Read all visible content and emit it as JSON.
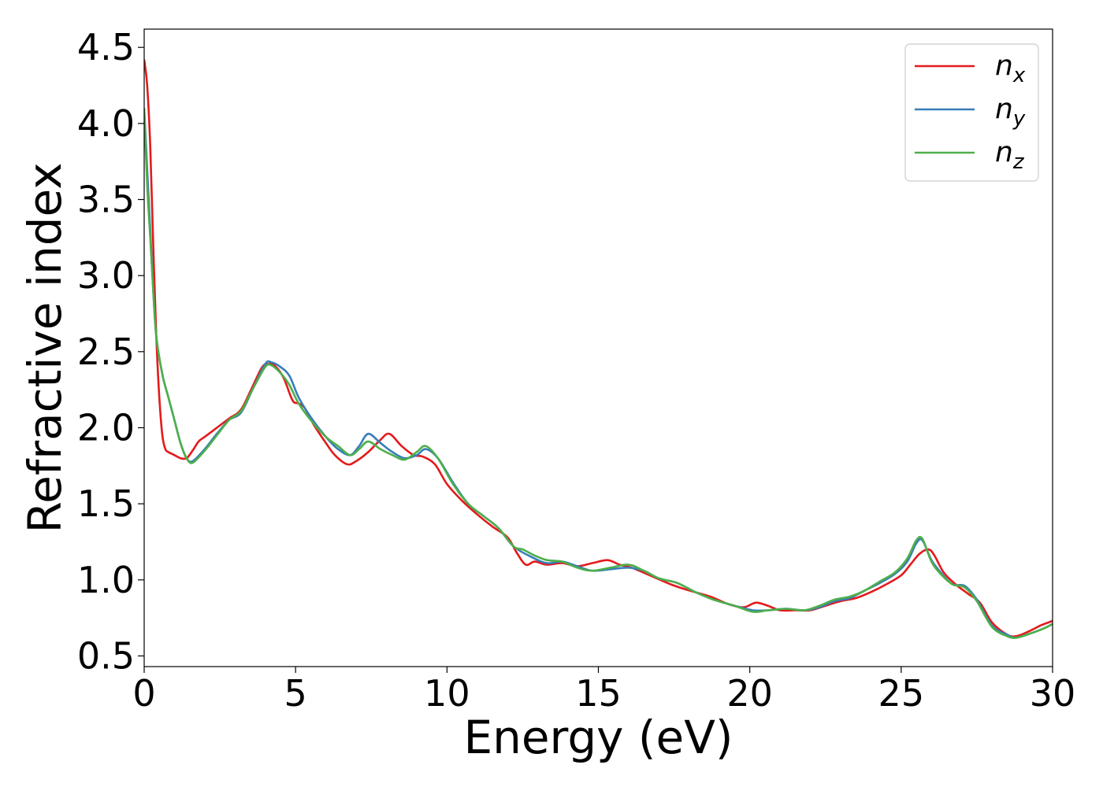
{
  "chart_data": {
    "type": "line",
    "xlabel": "Energy (eV)",
    "ylabel": "Refractive index",
    "xlim": [
      0,
      30
    ],
    "ylim": [
      0.43,
      4.62
    ],
    "xticks": [
      0,
      5,
      10,
      15,
      20,
      25,
      30
    ],
    "yticks": [
      0.5,
      1.0,
      1.5,
      2.0,
      2.5,
      3.0,
      3.5,
      4.0,
      4.5
    ],
    "xtick_labels": [
      "0",
      "5",
      "10",
      "15",
      "20",
      "25",
      "30"
    ],
    "ytick_labels": [
      "0.5",
      "1.0",
      "1.5",
      "2.0",
      "2.5",
      "3.0",
      "3.5",
      "4.0",
      "4.5"
    ],
    "grid": false,
    "legend_position": "top-right",
    "series": [
      {
        "name": "n_x",
        "legend_base": "n",
        "legend_sub": "x",
        "color": "#e41a1c",
        "x": [
          0,
          0.1,
          0.2,
          0.3,
          0.4,
          0.5,
          0.6,
          0.7,
          0.8,
          1.0,
          1.2,
          1.4,
          1.6,
          1.8,
          2.0,
          2.4,
          2.8,
          3.2,
          3.6,
          3.9,
          4.1,
          4.3,
          4.6,
          4.9,
          5.1,
          5.3,
          5.6,
          6.0,
          6.3,
          6.7,
          7.0,
          7.4,
          7.8,
          8.1,
          8.5,
          8.9,
          9.2,
          9.6,
          10.0,
          10.5,
          11.0,
          11.5,
          12.0,
          12.3,
          12.6,
          12.9,
          13.3,
          13.8,
          14.3,
          14.8,
          15.3,
          15.7,
          16.1,
          16.7,
          17.4,
          18.0,
          18.7,
          19.3,
          19.8,
          20.2,
          20.6,
          21.0,
          21.5,
          22.0,
          22.5,
          23.0,
          23.5,
          24.0,
          24.5,
          25.0,
          25.3,
          25.6,
          25.9,
          26.1,
          26.4,
          26.8,
          27.2,
          27.6,
          28.0,
          28.5,
          28.8,
          29.2,
          29.6,
          30.0
        ],
        "y": [
          4.42,
          4.25,
          3.85,
          3.2,
          2.6,
          2.2,
          1.95,
          1.86,
          1.84,
          1.82,
          1.8,
          1.8,
          1.85,
          1.91,
          1.94,
          2.0,
          2.06,
          2.12,
          2.28,
          2.4,
          2.42,
          2.41,
          2.33,
          2.18,
          2.16,
          2.13,
          2.02,
          1.9,
          1.82,
          1.76,
          1.78,
          1.84,
          1.92,
          1.96,
          1.88,
          1.82,
          1.81,
          1.76,
          1.63,
          1.52,
          1.43,
          1.35,
          1.28,
          1.18,
          1.1,
          1.12,
          1.1,
          1.11,
          1.09,
          1.11,
          1.13,
          1.1,
          1.08,
          1.03,
          0.97,
          0.93,
          0.89,
          0.84,
          0.82,
          0.85,
          0.83,
          0.8,
          0.8,
          0.8,
          0.83,
          0.86,
          0.88,
          0.92,
          0.97,
          1.03,
          1.1,
          1.17,
          1.2,
          1.16,
          1.05,
          0.97,
          0.91,
          0.85,
          0.72,
          0.64,
          0.63,
          0.66,
          0.7,
          0.73
        ]
      },
      {
        "name": "n_y",
        "legend_base": "n",
        "legend_sub": "y",
        "color": "#377eb8",
        "x": [
          0,
          0.1,
          0.2,
          0.3,
          0.4,
          0.6,
          0.8,
          1.0,
          1.2,
          1.4,
          1.6,
          2.0,
          2.4,
          2.8,
          3.2,
          3.6,
          4.0,
          4.2,
          4.5,
          4.8,
          5.1,
          5.5,
          6.0,
          6.4,
          6.8,
          7.1,
          7.4,
          7.8,
          8.2,
          8.6,
          9.0,
          9.3,
          9.7,
          10.2,
          10.7,
          11.2,
          11.7,
          12.2,
          12.8,
          13.3,
          13.8,
          14.3,
          14.8,
          15.4,
          16.0,
          16.5,
          17.0,
          17.6,
          18.2,
          18.8,
          19.5,
          20.1,
          20.6,
          21.2,
          21.8,
          22.3,
          22.8,
          23.3,
          23.8,
          24.3,
          24.8,
          25.2,
          25.5,
          25.7,
          26.0,
          26.3,
          26.7,
          27.1,
          27.5,
          28.0,
          28.5,
          28.8,
          29.3,
          29.7,
          30.0
        ],
        "y": [
          4.1,
          3.7,
          3.3,
          2.9,
          2.6,
          2.35,
          2.2,
          2.05,
          1.9,
          1.8,
          1.78,
          1.86,
          1.96,
          2.05,
          2.1,
          2.26,
          2.42,
          2.43,
          2.4,
          2.34,
          2.2,
          2.07,
          1.94,
          1.86,
          1.82,
          1.88,
          1.96,
          1.9,
          1.84,
          1.8,
          1.82,
          1.86,
          1.8,
          1.64,
          1.5,
          1.42,
          1.34,
          1.22,
          1.15,
          1.11,
          1.12,
          1.09,
          1.06,
          1.07,
          1.08,
          1.06,
          1.01,
          0.98,
          0.92,
          0.87,
          0.83,
          0.8,
          0.8,
          0.81,
          0.8,
          0.82,
          0.86,
          0.88,
          0.93,
          0.98,
          1.04,
          1.12,
          1.24,
          1.26,
          1.13,
          1.05,
          0.97,
          0.96,
          0.87,
          0.7,
          0.64,
          0.62,
          0.65,
          0.68,
          0.71
        ]
      },
      {
        "name": "n_z",
        "legend_base": "n",
        "legend_sub": "z",
        "color": "#4daf4a",
        "x": [
          0,
          0.1,
          0.2,
          0.3,
          0.4,
          0.6,
          0.8,
          1.0,
          1.2,
          1.4,
          1.6,
          2.0,
          2.4,
          2.8,
          3.2,
          3.6,
          4.0,
          4.2,
          4.5,
          4.8,
          5.1,
          5.5,
          6.0,
          6.4,
          6.8,
          7.1,
          7.4,
          7.8,
          8.2,
          8.6,
          9.0,
          9.3,
          9.7,
          10.2,
          10.7,
          11.2,
          11.7,
          12.2,
          12.5,
          12.9,
          13.3,
          13.8,
          14.3,
          14.8,
          15.4,
          16.0,
          16.5,
          17.0,
          17.6,
          18.2,
          18.8,
          19.5,
          20.1,
          20.6,
          21.2,
          21.8,
          22.3,
          22.8,
          23.3,
          23.8,
          24.3,
          24.8,
          25.2,
          25.5,
          25.7,
          26.0,
          26.3,
          26.7,
          27.1,
          27.5,
          28.0,
          28.5,
          28.8,
          29.3,
          29.7,
          30.0
        ],
        "y": [
          4.1,
          3.6,
          3.25,
          2.9,
          2.6,
          2.35,
          2.2,
          2.05,
          1.9,
          1.8,
          1.77,
          1.85,
          1.95,
          2.05,
          2.11,
          2.26,
          2.4,
          2.41,
          2.36,
          2.28,
          2.16,
          2.05,
          1.94,
          1.88,
          1.82,
          1.86,
          1.91,
          1.86,
          1.82,
          1.79,
          1.84,
          1.88,
          1.8,
          1.63,
          1.5,
          1.42,
          1.34,
          1.22,
          1.2,
          1.16,
          1.13,
          1.12,
          1.08,
          1.06,
          1.08,
          1.1,
          1.06,
          1.01,
          0.98,
          0.92,
          0.87,
          0.83,
          0.79,
          0.8,
          0.81,
          0.8,
          0.83,
          0.87,
          0.89,
          0.93,
          0.99,
          1.05,
          1.14,
          1.26,
          1.27,
          1.12,
          1.04,
          0.97,
          0.95,
          0.86,
          0.69,
          0.63,
          0.62,
          0.65,
          0.68,
          0.71
        ]
      }
    ]
  }
}
